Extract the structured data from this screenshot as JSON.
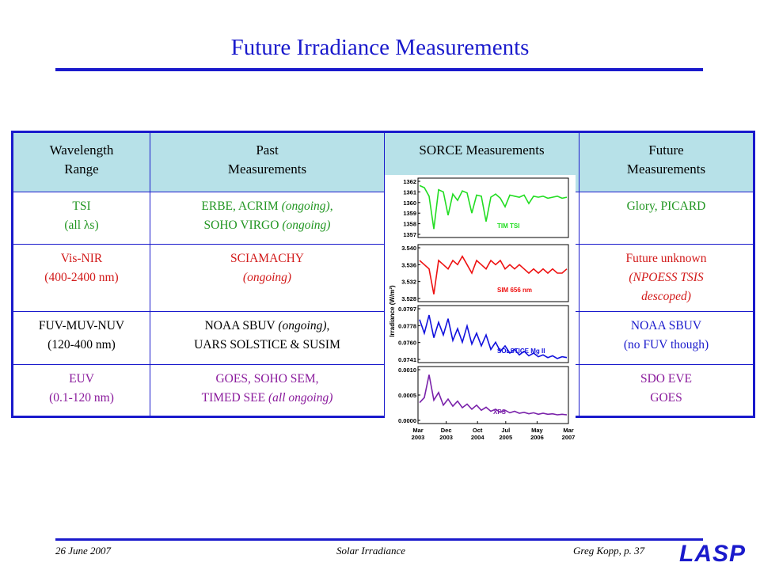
{
  "title": "Future Irradiance Measurements",
  "table": {
    "headers": {
      "wavelength": [
        "Wavelength",
        "Range"
      ],
      "past": [
        "Past",
        "Measurements"
      ],
      "sorce": "SORCE Measurements",
      "future": [
        "Future",
        "Measurements"
      ]
    },
    "rows": [
      {
        "range": [
          "TSI",
          "(all λs)"
        ],
        "past": [
          "ERBE, ACRIM ",
          "(ongoing)",
          ",",
          "SOHO VIRGO ",
          "(ongoing)"
        ],
        "future": [
          "Glory, PICARD"
        ]
      },
      {
        "range": [
          "Vis-NIR",
          "(400-2400 nm)"
        ],
        "past": [
          "SCIAMACHY",
          "(ongoing)"
        ],
        "future": [
          "Future unknown",
          "(NPOESS TSIS",
          "descoped)"
        ]
      },
      {
        "range": [
          "FUV-MUV-NUV",
          "(120-400 nm)"
        ],
        "past": [
          "NOAA SBUV ",
          "(ongoing)",
          ",",
          "UARS SOLSTICE & SUSIM"
        ],
        "future": [
          "NOAA SBUV",
          "(no FUV though)"
        ]
      },
      {
        "range": [
          "EUV",
          "(0.1-120 nm)"
        ],
        "past": [
          "GOES, SOHO SEM,",
          "TIMED SEE ",
          "(all ongoing)"
        ],
        "future": [
          "SDO EVE",
          "GOES"
        ]
      }
    ]
  },
  "chart_data": {
    "type": "line",
    "ylabel": "Irradiance (W/m²)",
    "x_ticks": [
      {
        "label": "Mar",
        "label2": "2003",
        "t": 0.0
      },
      {
        "label": "Dec",
        "label2": "2003",
        "t": 0.75
      },
      {
        "label": "Oct",
        "label2": "2004",
        "t": 1.583
      },
      {
        "label": "Jul",
        "label2": "2005",
        "t": 2.333
      },
      {
        "label": "May",
        "label2": "2006",
        "t": 3.167
      },
      {
        "label": "Mar",
        "label2": "2007",
        "t": 4.0
      }
    ],
    "panels": [
      {
        "name": "TIM TSI",
        "color": "#22dd22",
        "ticks": [
          "1362",
          "1361",
          "1360",
          "1359",
          "1358",
          "1357"
        ],
        "ymin": 1357,
        "ymax": 1362,
        "values": [
          1361.6,
          1361.4,
          1360.6,
          1357.5,
          1361.2,
          1361.0,
          1358.8,
          1360.8,
          1360.2,
          1361.1,
          1360.9,
          1359.0,
          1360.7,
          1360.6,
          1358.2,
          1360.5,
          1360.8,
          1360.4,
          1359.6,
          1360.7,
          1360.6,
          1360.5,
          1360.7,
          1359.9,
          1360.6,
          1360.5,
          1360.6,
          1360.4,
          1360.5,
          1360.6,
          1360.4,
          1360.5
        ]
      },
      {
        "name": "SIM 656 nm",
        "color": "#ee1111",
        "ticks": [
          "3.540",
          "3.536",
          "3.532",
          "3.528"
        ],
        "ymin": 3.528,
        "ymax": 3.54,
        "values": [
          3.537,
          3.536,
          3.535,
          3.529,
          3.537,
          3.536,
          3.535,
          3.537,
          3.536,
          3.538,
          3.536,
          3.534,
          3.537,
          3.536,
          3.535,
          3.537,
          3.536,
          3.537,
          3.535,
          3.536,
          3.535,
          3.536,
          3.535,
          3.534,
          3.535,
          3.534,
          3.535,
          3.534,
          3.535,
          3.534,
          3.534,
          3.535
        ]
      },
      {
        "name": "SOLSTICE Mg II",
        "color": "#1111dd",
        "ticks": [
          "0.0797",
          "0.0778",
          "0.0760",
          "0.0741"
        ],
        "ymin": 0.0741,
        "ymax": 0.0797,
        "values": [
          0.0785,
          0.077,
          0.079,
          0.0765,
          0.0782,
          0.0768,
          0.0786,
          0.0762,
          0.0775,
          0.076,
          0.0778,
          0.0758,
          0.077,
          0.0756,
          0.0768,
          0.0752,
          0.076,
          0.075,
          0.0756,
          0.0748,
          0.0752,
          0.0746,
          0.075,
          0.0745,
          0.0748,
          0.0744,
          0.0746,
          0.0743,
          0.0745,
          0.0742,
          0.0744,
          0.0743
        ]
      },
      {
        "name": "XPS",
        "color": "#7a22aa",
        "ticks": [
          "0.0010",
          "0.0005",
          "0.0000"
        ],
        "ymin": 0.0,
        "ymax": 0.001,
        "values": [
          0.00035,
          0.00045,
          0.0009,
          0.0004,
          0.00055,
          0.0003,
          0.00042,
          0.00028,
          0.00038,
          0.00025,
          0.00032,
          0.00022,
          0.0003,
          0.0002,
          0.00026,
          0.00018,
          0.00022,
          0.00016,
          0.0002,
          0.00015,
          0.00018,
          0.00014,
          0.00016,
          0.00013,
          0.00015,
          0.00012,
          0.00014,
          0.00012,
          0.00013,
          0.00011,
          0.00012,
          0.00011
        ]
      }
    ]
  },
  "footer": {
    "date": "26 June 2007",
    "center": "Solar Irradiance",
    "right": "Greg Kopp, p. 37",
    "logo": "LASP"
  }
}
